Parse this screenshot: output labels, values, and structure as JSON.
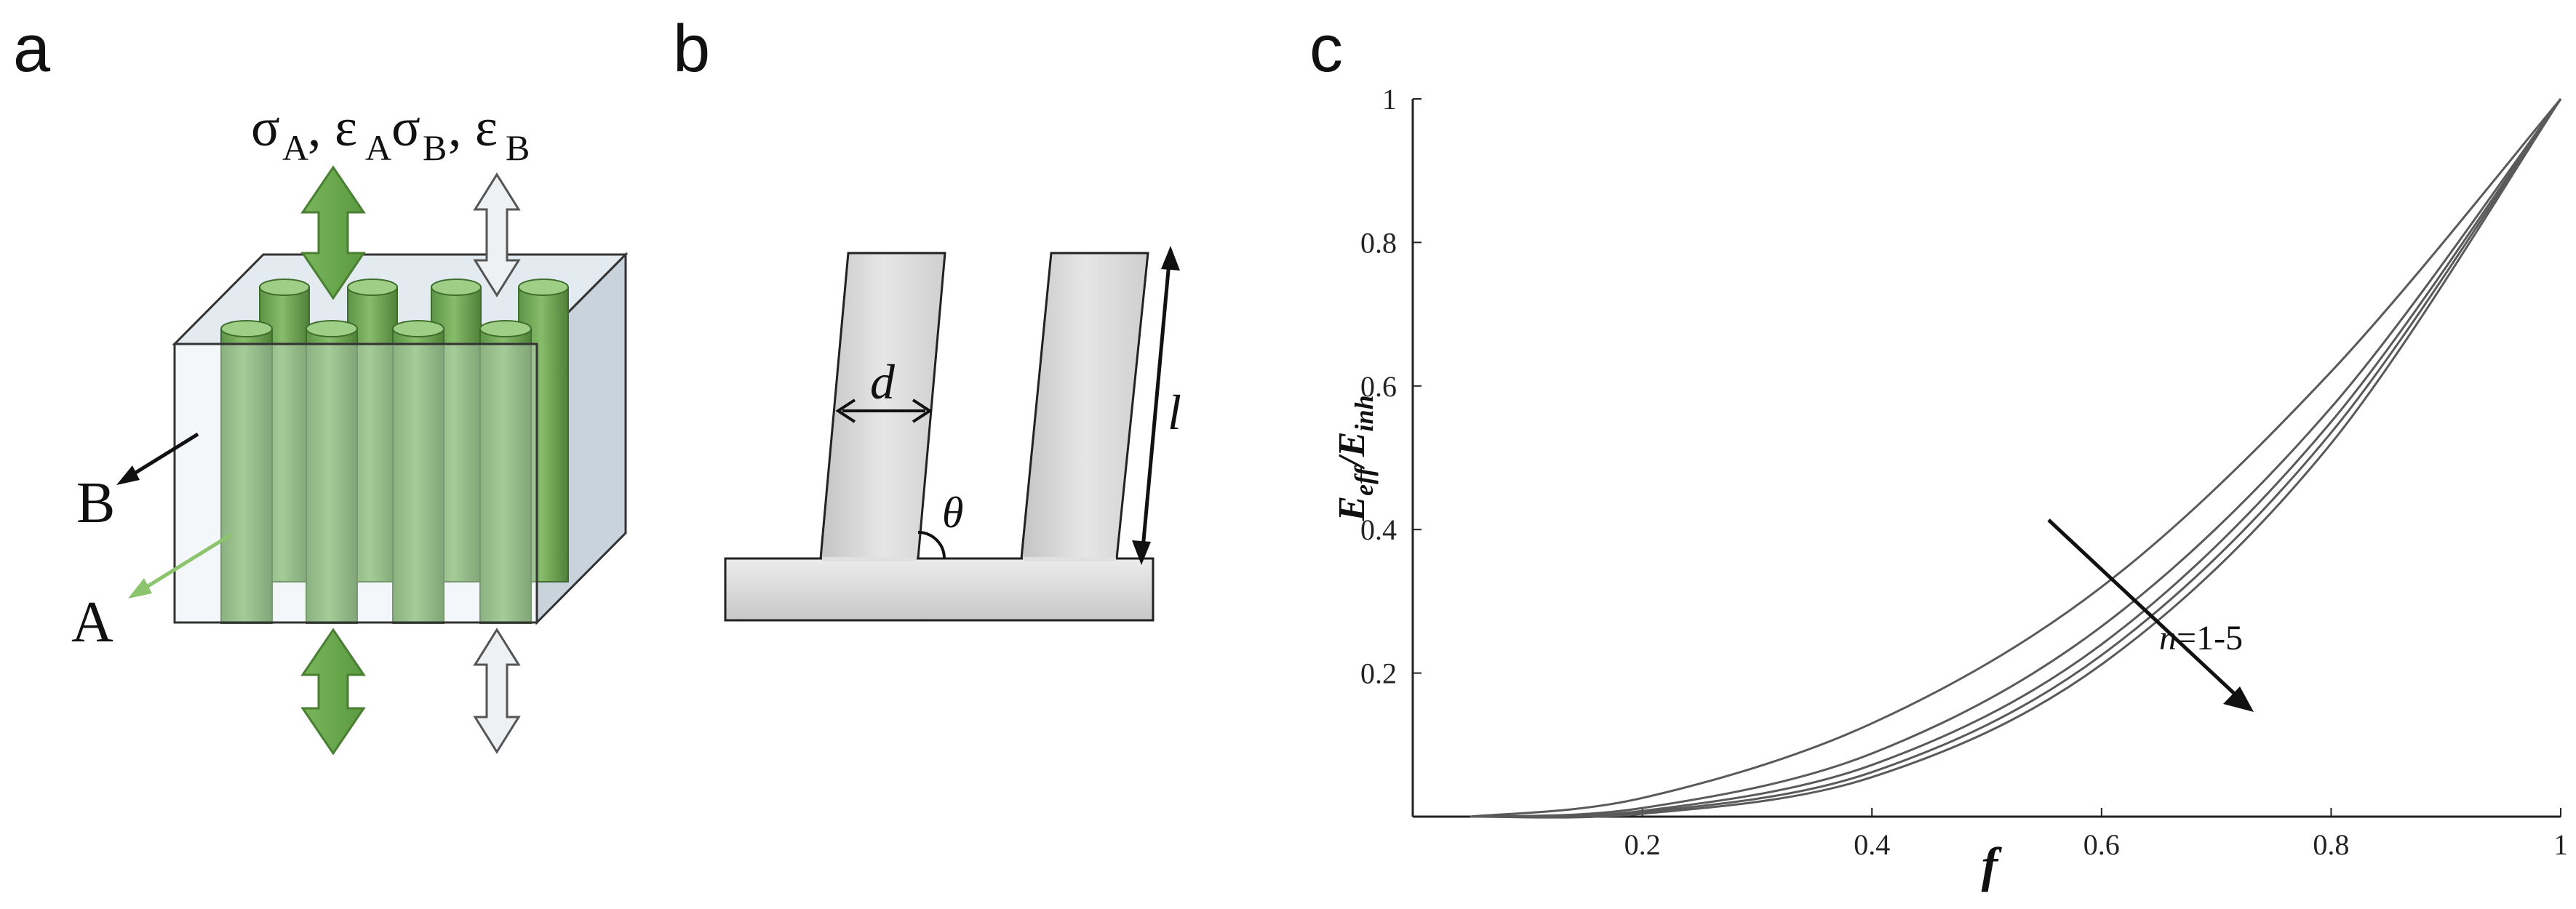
{
  "panels": {
    "a": {
      "letter": "a",
      "stress_label_A": "σA, εA",
      "stress_label_B": "σB, εB",
      "label_B": "B",
      "label_A": "A",
      "colors": {
        "fiber": "#6fa656",
        "fiber_dark": "#4e8539",
        "matrix": "#dde6ee",
        "arrow_white": "#e8ecef"
      }
    },
    "b": {
      "letter": "b",
      "label_d": "d",
      "label_theta": "θ",
      "label_l": "l"
    },
    "c": {
      "letter": "c",
      "ylabel": "Eeff/Einh",
      "xlabel": "f",
      "annotation": "n=1-5"
    }
  },
  "chart_data": {
    "type": "line",
    "xlabel": "f",
    "ylabel": "Eeff/Einh",
    "xlim": [
      0,
      1
    ],
    "ylim": [
      0,
      1
    ],
    "xticks": [
      "0.2",
      "0.4",
      "0.6",
      "0.8",
      "1"
    ],
    "yticks": [
      "0.2",
      "0.4",
      "0.6",
      "0.8",
      "1"
    ],
    "annotation": "n=1-5",
    "series": [
      {
        "x": [
          0.05,
          0.2,
          0.4,
          0.6,
          0.8,
          1.0
        ],
        "values": [
          0.0,
          0.026,
          0.13,
          0.32,
          0.62,
          1.0
        ]
      },
      {
        "x": [
          0.05,
          0.2,
          0.4,
          0.6,
          0.8,
          1.0
        ],
        "values": [
          0.0,
          0.012,
          0.088,
          0.265,
          0.57,
          1.0
        ]
      },
      {
        "x": [
          0.05,
          0.2,
          0.4,
          0.6,
          0.8,
          1.0
        ],
        "values": [
          0.0,
          0.008,
          0.072,
          0.24,
          0.55,
          1.0
        ]
      },
      {
        "x": [
          0.05,
          0.2,
          0.4,
          0.6,
          0.8,
          1.0
        ],
        "values": [
          0.0,
          0.006,
          0.062,
          0.225,
          0.535,
          1.0
        ]
      },
      {
        "x": [
          0.05,
          0.2,
          0.4,
          0.6,
          0.8,
          1.0
        ],
        "values": [
          0.0,
          0.004,
          0.055,
          0.212,
          0.52,
          1.0
        ]
      }
    ]
  }
}
